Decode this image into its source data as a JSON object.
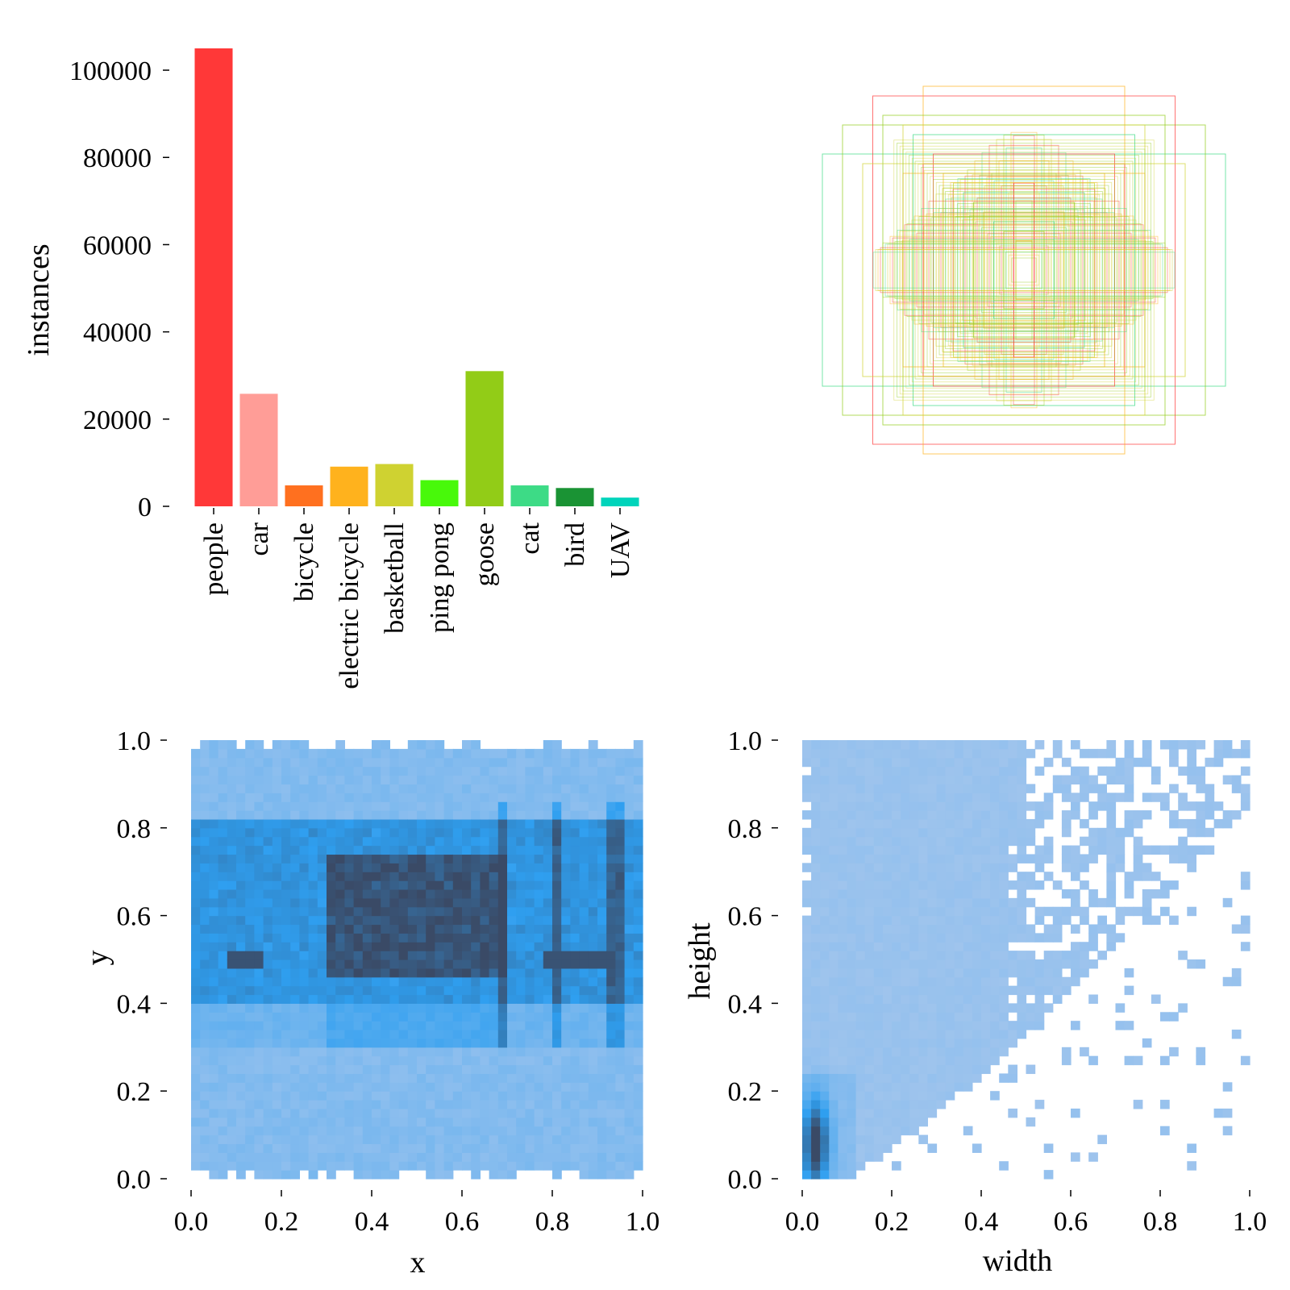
{
  "chart_data": [
    {
      "panel": "class-instances",
      "type": "bar",
      "title": "",
      "xlabel": "",
      "ylabel": "instances",
      "ylim": [
        0,
        105000
      ],
      "yticks": [
        0,
        20000,
        40000,
        60000,
        80000,
        100000
      ],
      "categories": [
        "people",
        "car",
        "bicycle",
        "electric bicycle",
        "basketball",
        "ping pong",
        "goose",
        "cat",
        "bird",
        "UAV"
      ],
      "values": [
        105000,
        25800,
        4800,
        9100,
        9700,
        6000,
        31000,
        4800,
        4200,
        2000
      ],
      "colors": [
        "#ff3838",
        "#ff9d97",
        "#ff701f",
        "#ffb21d",
        "#cfd231",
        "#48f90a",
        "#92cc17",
        "#3ddb86",
        "#1a9334",
        "#00d4bb"
      ]
    },
    {
      "panel": "box-overlay",
      "type": "other",
      "description_note": "overlay of sample bounding boxes centred in the panel",
      "sample_boxes_wh": [
        [
          1.0,
          0.6
        ],
        [
          0.9,
          0.75
        ],
        [
          0.75,
          0.9
        ],
        [
          0.5,
          0.95
        ],
        [
          0.6,
          0.75
        ],
        [
          0.55,
          0.7
        ],
        [
          0.7,
          0.8
        ],
        [
          0.45,
          0.6
        ],
        [
          0.4,
          0.5
        ],
        [
          0.35,
          0.45
        ],
        [
          0.3,
          0.4
        ],
        [
          0.25,
          0.35
        ],
        [
          0.5,
          0.55
        ],
        [
          0.6,
          0.5
        ],
        [
          0.2,
          0.3
        ],
        [
          0.15,
          0.25
        ],
        [
          0.1,
          0.2
        ],
        [
          0.05,
          0.45
        ],
        [
          0.04,
          0.15
        ],
        [
          0.8,
          0.55
        ]
      ],
      "box_colors": [
        "#3ddb86",
        "#92cc17",
        "#ff3838",
        "#ffb21d",
        "#cfd231"
      ]
    },
    {
      "panel": "xy-histogram",
      "type": "heatmap",
      "xlabel": "x",
      "ylabel": "y",
      "xlim": [
        0.0,
        1.0
      ],
      "ylim": [
        0.0,
        1.0
      ],
      "xticks": [
        "0.0",
        "0.2",
        "0.4",
        "0.6",
        "0.8",
        "1.0"
      ],
      "yticks": [
        "0.0",
        "0.2",
        "0.4",
        "0.6",
        "0.8",
        "1.0"
      ],
      "dense_region": {
        "x": [
          0.3,
          0.7
        ],
        "y": [
          0.45,
          0.75
        ]
      },
      "hot_lines_x": [
        0.69,
        0.81,
        0.94
      ],
      "hot_line_y": 0.5,
      "colors": {
        "low": "#abc8ed",
        "mid": "#2f9ff0",
        "high": "#3a4a66"
      }
    },
    {
      "panel": "wh-histogram",
      "type": "heatmap",
      "xlabel": "width",
      "ylabel": "height",
      "xlim": [
        0.0,
        1.0
      ],
      "ylim": [
        0.0,
        1.0
      ],
      "xticks": [
        "0.0",
        "0.2",
        "0.4",
        "0.6",
        "0.8",
        "1.0"
      ],
      "yticks": [
        "0.0",
        "0.2",
        "0.4",
        "0.6",
        "0.8",
        "1.0"
      ],
      "peak": {
        "width": 0.03,
        "height": 0.08
      },
      "colors": {
        "low": "#abc8ed",
        "mid": "#2f9ff0",
        "high": "#3a4a66"
      }
    }
  ]
}
